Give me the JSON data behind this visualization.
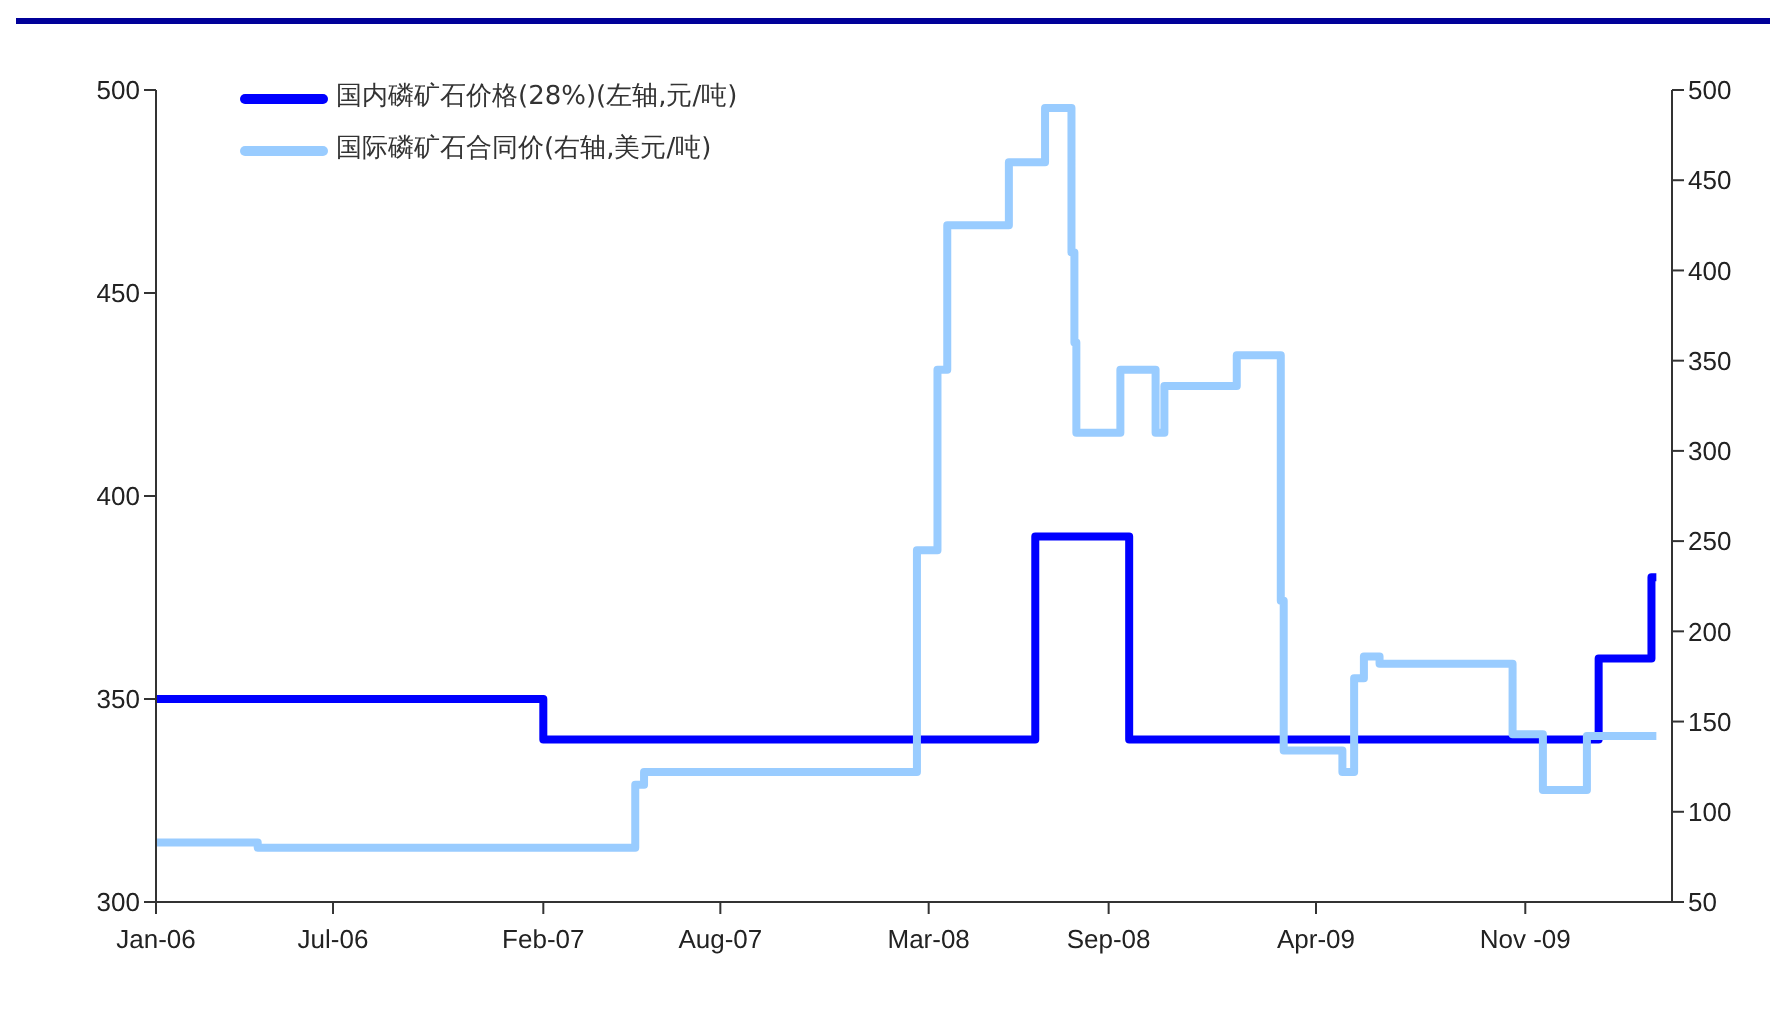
{
  "chart_data": {
    "type": "step",
    "xlim": [
      "2006-01-01",
      "2010-03-31"
    ],
    "xticks": [
      {
        "value": "2006-01-01",
        "label": "Jan-06"
      },
      {
        "value": "2006-07-01",
        "label": "Jul-06"
      },
      {
        "value": "2007-02-01",
        "label": "Feb-07"
      },
      {
        "value": "2007-08-01",
        "label": "Aug-07"
      },
      {
        "value": "2008-03-01",
        "label": "Mar-08"
      },
      {
        "value": "2008-09-01",
        "label": "Sep-08"
      },
      {
        "value": "2009-04-01",
        "label": "Apr-09"
      },
      {
        "value": "2009-11-01",
        "label": "Nov -09"
      }
    ],
    "ylim": [
      300,
      500
    ],
    "yticks": [
      300,
      350,
      400,
      450,
      500
    ],
    "y2lim": [
      50,
      500
    ],
    "y2ticks": [
      50,
      100,
      150,
      200,
      250,
      300,
      350,
      400,
      450,
      500
    ],
    "grid": false,
    "legend": "top left",
    "line_style": "solid",
    "marker": "none",
    "series": [
      {
        "name": "国内磷矿石价格(28%)(左轴,元/吨)",
        "color": "#0000ff",
        "axis": "y",
        "x": [
          "2006-01-01",
          "2007-02-01",
          "2008-06-18",
          "2008-09-22",
          "2010-01-15",
          "2010-03-10",
          "2010-03-15"
        ],
        "values": [
          350,
          340,
          390,
          340,
          360,
          380,
          380
        ]
      },
      {
        "name": "国际磷矿石合同价(右轴,美元/吨)",
        "color": "#99ccff",
        "axis": "y2",
        "x": [
          "2006-01-01",
          "2006-04-15",
          "2007-05-06",
          "2007-05-15",
          "2008-02-18",
          "2008-03-10",
          "2008-03-20",
          "2008-05-22",
          "2008-06-28",
          "2008-07-25",
          "2008-07-28",
          "2008-07-30",
          "2008-09-13",
          "2008-10-19",
          "2008-10-28",
          "2009-01-10",
          "2009-02-24",
          "2009-02-27",
          "2009-04-28",
          "2009-05-10",
          "2009-05-20",
          "2009-06-05",
          "2009-10-19",
          "2009-11-19",
          "2010-01-03",
          "2010-03-15"
        ],
        "values": [
          83,
          80,
          115,
          122,
          245,
          345,
          425,
          460,
          490,
          410,
          360,
          310,
          345,
          310,
          336,
          353,
          217,
          134,
          122,
          174,
          186,
          182,
          143,
          112,
          142,
          142
        ]
      }
    ]
  }
}
